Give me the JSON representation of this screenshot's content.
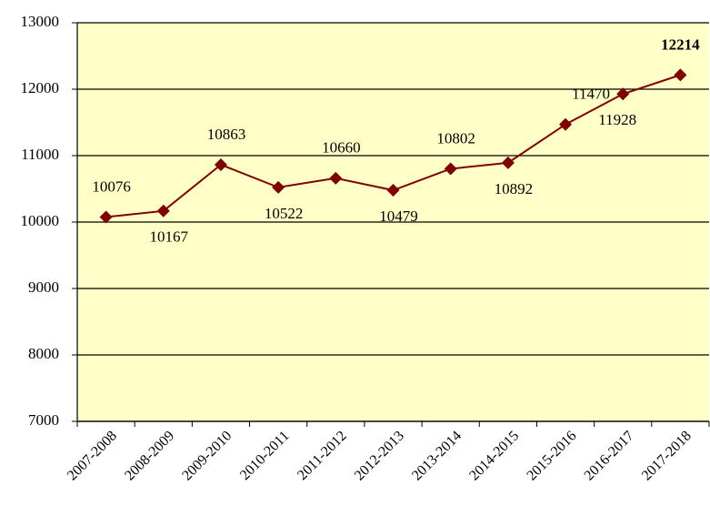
{
  "chart_data": {
    "type": "line",
    "categories": [
      "2007-2008",
      "2008-2009",
      "2009-2010",
      "2010-2011",
      "2011-2012",
      "2012-2013",
      "2013-2014",
      "2014-2015",
      "2015-2016",
      "2016-2017",
      "2017-2018"
    ],
    "series": [
      {
        "name": "",
        "color": "#800000",
        "values": [
          10076,
          10167,
          10863,
          10522,
          10660,
          10479,
          10802,
          10892,
          11470,
          11928,
          12214
        ]
      }
    ],
    "ylim": [
      7000,
      13000
    ],
    "yticks": [
      7000,
      8000,
      9000,
      10000,
      11000,
      12000,
      13000
    ],
    "grid": true,
    "background": "#ffffc8"
  }
}
